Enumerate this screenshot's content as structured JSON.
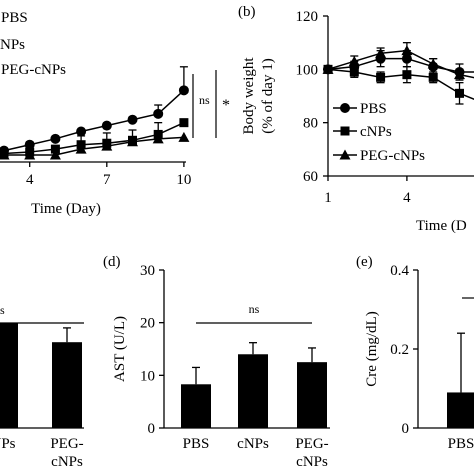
{
  "chart_data": [
    {
      "id": "a",
      "type": "line",
      "xlabel": "Time (Day)",
      "ylabel": "",
      "x_ticks": [
        "4",
        "7",
        "10"
      ],
      "legend": [
        "PBS",
        "NPs",
        "PEG-cNPs"
      ],
      "x": [
        1,
        2,
        3,
        4,
        5,
        6,
        7,
        8,
        9,
        10
      ],
      "series": [
        {
          "name": "PBS",
          "marker": "circle",
          "values": [
            1.0,
            1.1,
            1.3,
            1.7,
            2.1,
            2.6,
            3.0,
            3.4,
            3.8,
            5.4
          ],
          "err": [
            0,
            0,
            0,
            0,
            0,
            0,
            0,
            0,
            0.6,
            1.6
          ]
        },
        {
          "name": "cNPs",
          "marker": "square",
          "values": [
            1.0,
            1.0,
            1.1,
            1.2,
            1.4,
            1.7,
            1.8,
            2.0,
            2.4,
            3.2
          ],
          "err": [
            0,
            0,
            0,
            0,
            0,
            0.6,
            0.7,
            0.7,
            0.8,
            0
          ]
        },
        {
          "name": "PEG-cNPs",
          "marker": "triangle",
          "values": [
            1.0,
            1.0,
            1.0,
            1.0,
            1.0,
            1.4,
            1.6,
            1.9,
            2.1,
            2.2
          ],
          "err": [
            0,
            0,
            0,
            0,
            0,
            0,
            0,
            0,
            0,
            0
          ]
        }
      ],
      "annotations": [
        "ns",
        "*"
      ]
    },
    {
      "id": "b",
      "panel_label": "(b)",
      "type": "line",
      "xlabel": "Time (D",
      "ylabel": "Body weight",
      "ylabel2": "(% of day 1)",
      "ylim": [
        60,
        120
      ],
      "y_ticks": [
        "60",
        "80",
        "100",
        "120"
      ],
      "x_ticks": [
        "1",
        "4"
      ],
      "legend": [
        "PBS",
        "cNPs",
        "PEG-cNPs"
      ],
      "x": [
        1,
        2,
        3,
        4,
        5,
        6,
        7
      ],
      "series": [
        {
          "name": "PBS",
          "marker": "circle",
          "values": [
            100,
            101,
            104,
            104,
            101,
            99,
            99
          ],
          "err": [
            0,
            2,
            3,
            3,
            3,
            3,
            3
          ]
        },
        {
          "name": "cNPs",
          "marker": "square",
          "values": [
            100,
            99,
            97,
            98,
            97,
            91,
            87
          ],
          "err": [
            0,
            2,
            2,
            3,
            2,
            4,
            4
          ]
        },
        {
          "name": "PEG-cNPs",
          "marker": "triangle",
          "values": [
            100,
            103,
            106,
            107,
            102,
            98,
            96
          ],
          "err": [
            0,
            2,
            2,
            3,
            2,
            2,
            2
          ]
        }
      ]
    },
    {
      "id": "c",
      "type": "bar",
      "categories": [
        "cNPs",
        "PEG-\ncNPs"
      ],
      "category_lines": [
        [
          "NPs"
        ],
        [
          "PEG-",
          "cNPs"
        ]
      ],
      "values": [
        11.0,
        9.0
      ],
      "err": [
        0,
        1.5
      ],
      "ylim": [
        0,
        15
      ],
      "annotation": "s"
    },
    {
      "id": "d",
      "panel_label": "(d)",
      "type": "bar",
      "ylabel": "AST (U/L)",
      "ylim": [
        0,
        30
      ],
      "y_ticks": [
        "0",
        "10",
        "20",
        "30"
      ],
      "categories": [
        "PBS",
        "cNPs",
        "PEG-cNPs"
      ],
      "category_lines": [
        [
          "PBS"
        ],
        [
          "cNPs"
        ],
        [
          "PEG-",
          "cNPs"
        ]
      ],
      "values": [
        8.3,
        14.0,
        12.5
      ],
      "err": [
        3.2,
        2.2,
        2.7
      ],
      "annotation": "ns"
    },
    {
      "id": "e",
      "panel_label": "(e)",
      "type": "bar",
      "ylabel": "Cre (mg/dL)",
      "ylim": [
        0,
        0.4
      ],
      "y_ticks": [
        "0",
        "0.2",
        "0.4"
      ],
      "categories": [
        "PBS"
      ],
      "category_lines": [
        [
          "PBS"
        ]
      ],
      "values": [
        0.09
      ],
      "err": [
        0.15
      ]
    }
  ]
}
